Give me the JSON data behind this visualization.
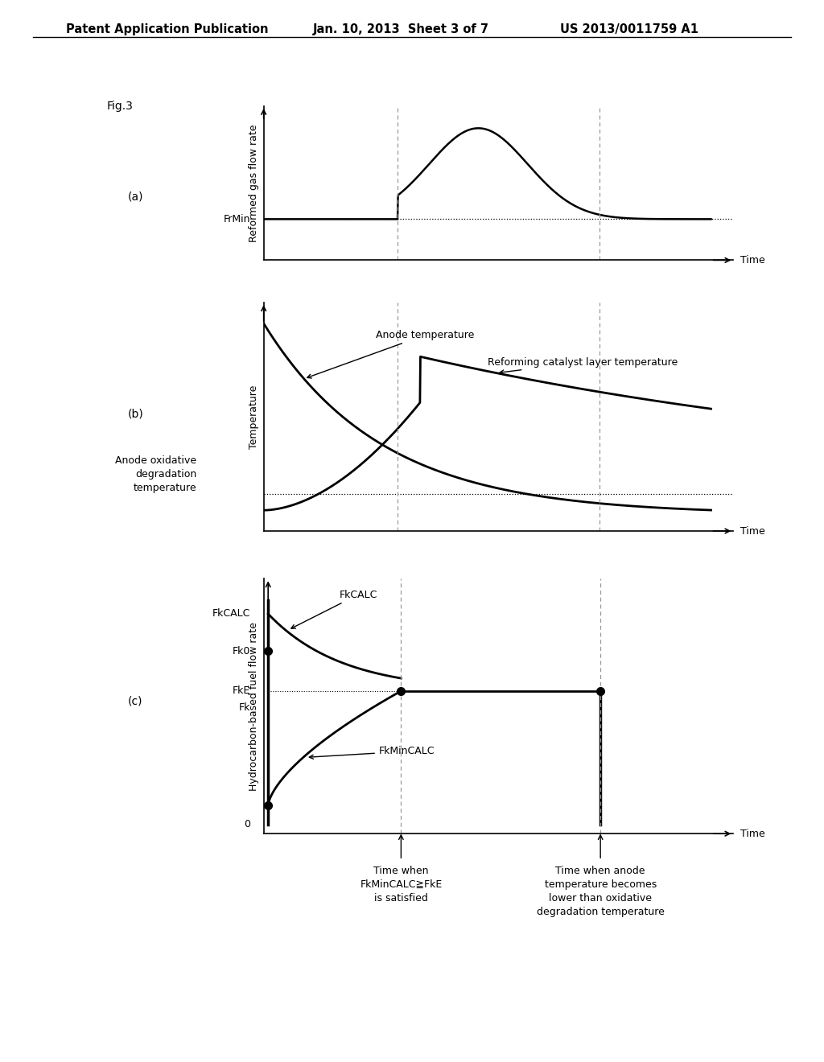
{
  "title_left": "Patent Application Publication",
  "title_mid": "Jan. 10, 2013  Sheet 3 of 7",
  "title_right": "US 2013/0011759 A1",
  "fig_label": "Fig.3",
  "panel_a_label": "(a)",
  "panel_b_label": "(b)",
  "panel_c_label": "(c)",
  "panel_a_ylabel": "Reformed gas flow rate",
  "panel_b_ylabel": "Temperature",
  "panel_c_ylabel": "Hydrocarbon-based fuel flow rate",
  "xlabel": "Time",
  "frmin_label": "FrMin",
  "anode_temp_label": "Anode temperature",
  "reforming_temp_label": "Reforming catalyst layer temperature",
  "anode_oxidative_label": "Anode oxidative\ndegradation\ntemperature",
  "fkcalc_label": "FkCALC",
  "fk0_label": "Fk0",
  "fke_label": "FkE",
  "fk_label": "Fk",
  "fkmincalc_label": "FkMinCALC",
  "time_label1": "Time when\nFkMinCALC≧FkE\nis satisfied",
  "time_label2": "Time when anode\ntemperature becomes\nlower than oxidative\ndegradation temperature",
  "bg_color": "#ffffff",
  "line_color": "#000000",
  "dashed_color": "#999999",
  "t1": 3.0,
  "t2": 7.5,
  "tmax": 10.0
}
